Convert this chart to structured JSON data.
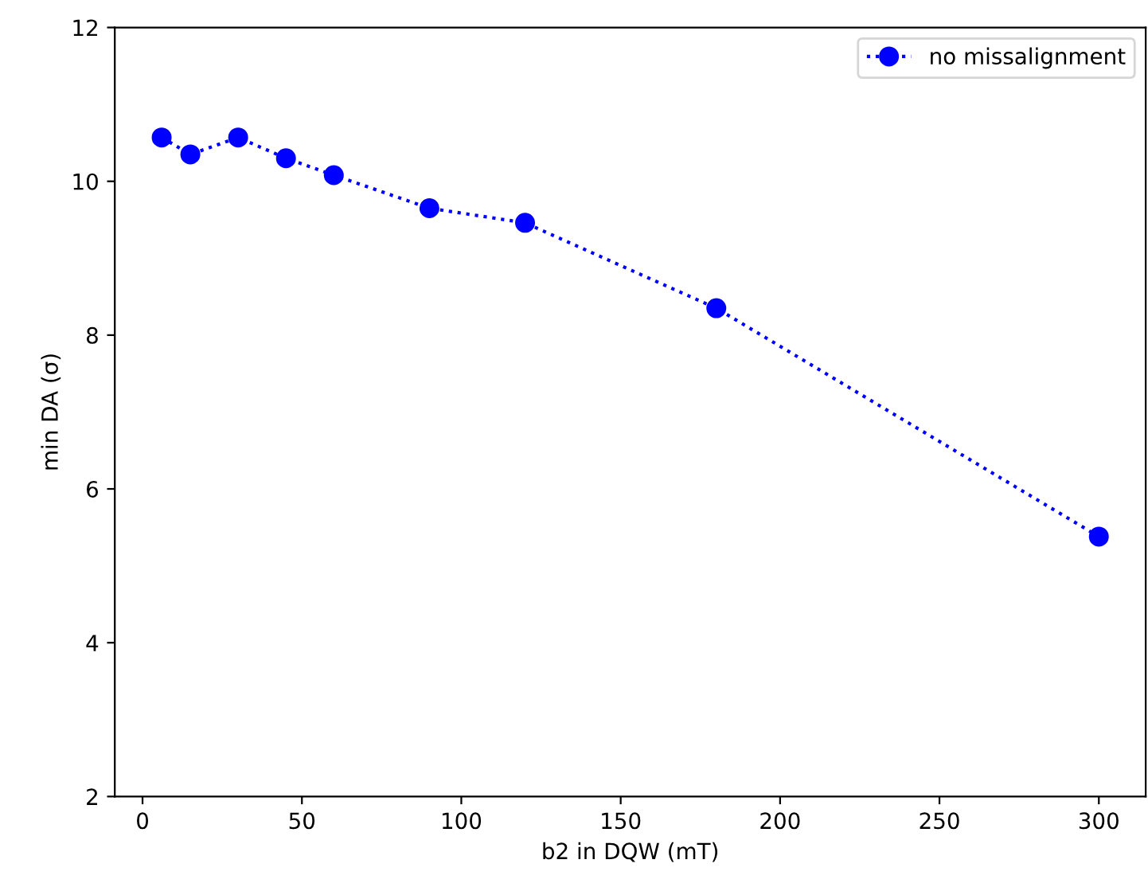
{
  "chart_data": {
    "type": "line",
    "xlabel": "b2 in DQW (mT)",
    "ylabel": "min DA (σ)",
    "x": [
      6,
      15,
      30,
      45,
      60,
      90,
      120,
      180,
      300
    ],
    "series": [
      {
        "name": "no missalignment",
        "color": "#0000ff",
        "values": [
          10.57,
          10.35,
          10.57,
          10.3,
          10.08,
          9.65,
          9.46,
          8.35,
          5.38
        ]
      }
    ],
    "xlim": [
      -8.7,
      314.7
    ],
    "xticks": [
      0,
      50,
      100,
      150,
      200,
      250,
      300
    ],
    "ylim": [
      2,
      12
    ],
    "yticks": [
      2,
      4,
      6,
      8,
      10,
      12
    ],
    "grid": false,
    "legend": "top right",
    "marker": "circle",
    "line_style": "dotted"
  }
}
